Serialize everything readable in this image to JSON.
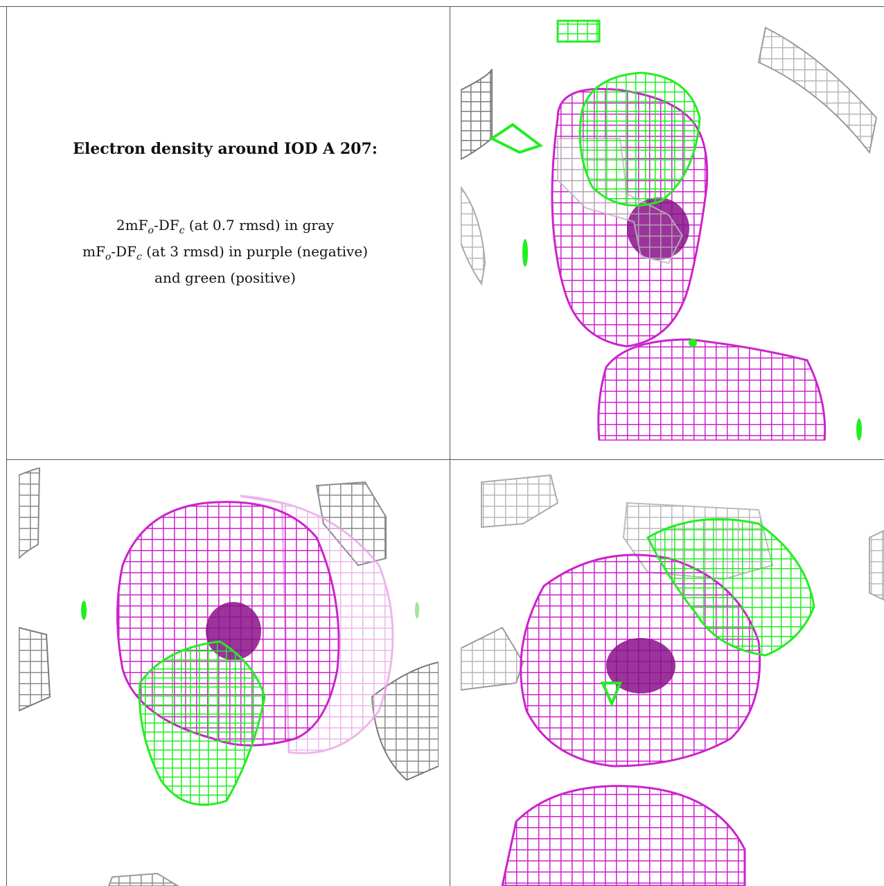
{
  "caption": {
    "title": "Electron density around IOD A 207:",
    "line1_pre": "2mF",
    "line1_sub1": "o",
    "line1_mid": "-DF",
    "line1_sub2": "c",
    "line1_post": " (at 0.7 rmsd) in gray",
    "line2_pre": "mF",
    "line2_sub1": "o",
    "line2_mid": "-DF",
    "line2_sub2": "c",
    "line2_post": " (at 3 rmsd) in purple (negative)",
    "line3": "and green (positive)"
  },
  "colors": {
    "gray_map": "#b8b8b8",
    "gray_dark": "#7a7a7a",
    "negative": "#cc22cc",
    "negative_core": "#8a108a",
    "positive": "#22ee22",
    "frame": "#555555"
  },
  "panels": [
    {
      "id": "top-right",
      "view": "density-view-1"
    },
    {
      "id": "bottom-left",
      "view": "density-view-2"
    },
    {
      "id": "bottom-right",
      "view": "density-view-3"
    }
  ]
}
